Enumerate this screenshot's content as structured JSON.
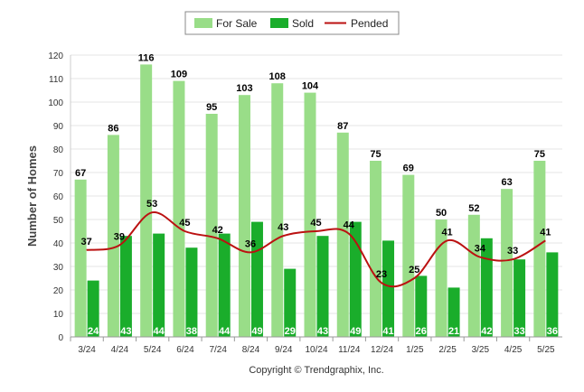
{
  "chart_data": {
    "type": "bar",
    "categories": [
      "3/24",
      "4/24",
      "5/24",
      "6/24",
      "7/24",
      "8/24",
      "9/24",
      "10/24",
      "11/24",
      "12/24",
      "1/25",
      "2/25",
      "3/25",
      "4/25",
      "5/25"
    ],
    "series": [
      {
        "name": "For Sale",
        "kind": "bar",
        "values": [
          67,
          86,
          116,
          109,
          95,
          103,
          108,
          104,
          87,
          75,
          69,
          50,
          52,
          63,
          75
        ],
        "color": "#99dd88"
      },
      {
        "name": "Sold",
        "kind": "bar",
        "values": [
          24,
          43,
          44,
          38,
          44,
          49,
          29,
          43,
          49,
          41,
          26,
          21,
          42,
          33,
          36
        ],
        "color": "#1aad2b"
      },
      {
        "name": "Pended",
        "kind": "line",
        "values": [
          37,
          39,
          53,
          45,
          42,
          36,
          43,
          45,
          44,
          23,
          25,
          41,
          34,
          33,
          41
        ],
        "color": "#bb1111"
      }
    ],
    "ylabel": "Number of Homes",
    "xlabel": "",
    "ylim": [
      0,
      120
    ],
    "yticks": [
      0,
      10,
      20,
      30,
      40,
      50,
      60,
      70,
      80,
      90,
      100,
      110,
      120
    ],
    "grid": true,
    "legend_position": "top-center"
  },
  "footer": {
    "copyright": "Copyright © Trendgraphix, Inc."
  }
}
